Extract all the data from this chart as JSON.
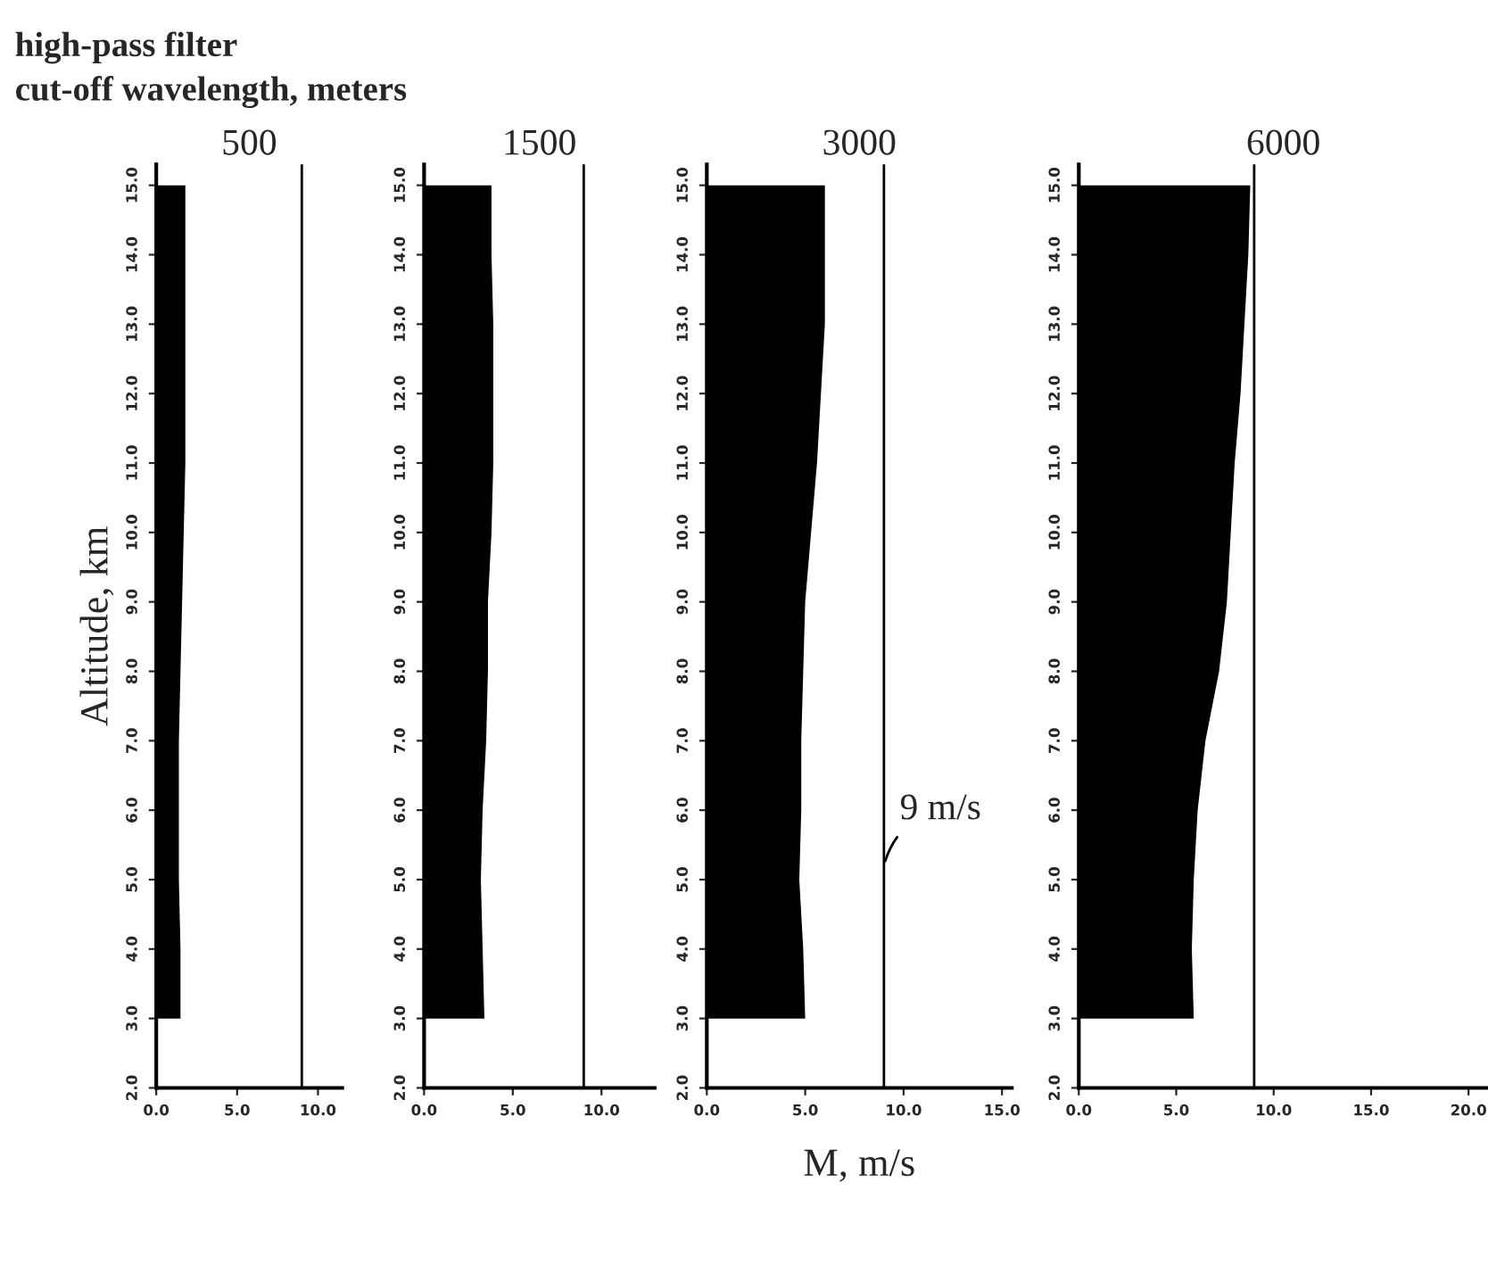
{
  "chart_data": [
    {
      "type": "area",
      "orientation": "horizontal",
      "title": "500",
      "ylabel": "Altitude, km",
      "annotations": [
        "high-pass filter",
        "cut-off wavelength, meters"
      ],
      "x": [
        3,
        4,
        5,
        6,
        7,
        8,
        9,
        10,
        11,
        12,
        13,
        14,
        15
      ],
      "series": [
        {
          "color": "#000000",
          "values": [
            1.5,
            1.5,
            1.4,
            1.4,
            1.4,
            1.5,
            1.6,
            1.7,
            1.8,
            1.8,
            1.8,
            1.8,
            1.8
          ]
        }
      ],
      "xlim": [
        0,
        11.5
      ],
      "xticks": [
        {
          "value": 0,
          "label": "0.0"
        },
        {
          "value": 5,
          "label": "5.0"
        },
        {
          "value": 10,
          "label": "10.0"
        }
      ],
      "ylim": [
        2,
        15.3
      ],
      "yticks": [
        {
          "value": 2,
          "label": "2.0"
        },
        {
          "value": 3,
          "label": "3.0"
        },
        {
          "value": 4,
          "label": "4.0"
        },
        {
          "value": 5,
          "label": "5.0"
        },
        {
          "value": 6,
          "label": "6.0"
        },
        {
          "value": 7,
          "label": "7.0"
        },
        {
          "value": 8,
          "label": "8.0"
        },
        {
          "value": 9,
          "label": "9.0"
        },
        {
          "value": 10,
          "label": "10.0"
        },
        {
          "value": 11,
          "label": "11.0"
        },
        {
          "value": 12,
          "label": "12.0"
        },
        {
          "value": 13,
          "label": "13.0"
        },
        {
          "value": 14,
          "label": "14.0"
        },
        {
          "value": 15,
          "label": "15.0"
        }
      ],
      "ref_lines": [
        {
          "axis": "x",
          "value": 9,
          "color": "#000000"
        }
      ]
    },
    {
      "type": "area",
      "orientation": "horizontal",
      "title": "1500",
      "x": [
        3,
        4,
        5,
        6,
        7,
        8,
        9,
        10,
        11,
        12,
        13,
        14,
        15
      ],
      "series": [
        {
          "color": "#000000",
          "values": [
            3.4,
            3.3,
            3.2,
            3.3,
            3.5,
            3.6,
            3.6,
            3.8,
            3.9,
            3.9,
            3.9,
            3.8,
            3.8
          ]
        }
      ],
      "xlim": [
        0,
        13
      ],
      "xticks": [
        {
          "value": 0,
          "label": "0.0"
        },
        {
          "value": 5,
          "label": "5.0"
        },
        {
          "value": 10,
          "label": "10.0"
        }
      ],
      "ylim": [
        2,
        15.3
      ],
      "yticks": [
        {
          "value": 2,
          "label": "2.0"
        },
        {
          "value": 3,
          "label": "3.0"
        },
        {
          "value": 4,
          "label": "4.0"
        },
        {
          "value": 5,
          "label": "5.0"
        },
        {
          "value": 6,
          "label": "6.0"
        },
        {
          "value": 7,
          "label": "7.0"
        },
        {
          "value": 8,
          "label": "8.0"
        },
        {
          "value": 9,
          "label": "9.0"
        },
        {
          "value": 10,
          "label": "10.0"
        },
        {
          "value": 11,
          "label": "11.0"
        },
        {
          "value": 12,
          "label": "12.0"
        },
        {
          "value": 13,
          "label": "13.0"
        },
        {
          "value": 14,
          "label": "14.0"
        },
        {
          "value": 15,
          "label": "15.0"
        }
      ],
      "ref_lines": [
        {
          "axis": "x",
          "value": 9,
          "color": "#000000"
        }
      ]
    },
    {
      "type": "area",
      "orientation": "horizontal",
      "title": "3000",
      "xlabel": "M, m/s",
      "x": [
        3,
        4,
        5,
        6,
        7,
        8,
        9,
        10,
        11,
        12,
        13,
        14,
        15
      ],
      "series": [
        {
          "color": "#000000",
          "values": [
            5.0,
            4.9,
            4.7,
            4.8,
            4.8,
            4.9,
            5.0,
            5.3,
            5.6,
            5.8,
            6.0,
            6.0,
            6.0
          ]
        }
      ],
      "xlim": [
        0,
        15.5
      ],
      "xticks": [
        {
          "value": 0,
          "label": "0.0"
        },
        {
          "value": 5,
          "label": "5.0"
        },
        {
          "value": 10,
          "label": "10.0"
        },
        {
          "value": 15,
          "label": "15.0"
        }
      ],
      "ylim": [
        2,
        15.3
      ],
      "yticks": [
        {
          "value": 2,
          "label": "2.0"
        },
        {
          "value": 3,
          "label": "3.0"
        },
        {
          "value": 4,
          "label": "4.0"
        },
        {
          "value": 5,
          "label": "5.0"
        },
        {
          "value": 6,
          "label": "6.0"
        },
        {
          "value": 7,
          "label": "7.0"
        },
        {
          "value": 8,
          "label": "8.0"
        },
        {
          "value": 9,
          "label": "9.0"
        },
        {
          "value": 10,
          "label": "10.0"
        },
        {
          "value": 11,
          "label": "11.0"
        },
        {
          "value": 12,
          "label": "12.0"
        },
        {
          "value": 13,
          "label": "13.0"
        },
        {
          "value": 14,
          "label": "14.0"
        },
        {
          "value": 15,
          "label": "15.0"
        }
      ],
      "ref_lines": [
        {
          "axis": "x",
          "value": 9,
          "label": "9 m/s",
          "color": "#000000"
        }
      ]
    },
    {
      "type": "area",
      "orientation": "horizontal",
      "title": "6000",
      "x": [
        3,
        4,
        5,
        6,
        7,
        8,
        9,
        10,
        11,
        12,
        13,
        14,
        15
      ],
      "series": [
        {
          "color": "#000000",
          "values": [
            5.9,
            5.8,
            5.9,
            6.1,
            6.5,
            7.2,
            7.6,
            7.8,
            8.0,
            8.3,
            8.5,
            8.7,
            8.8
          ]
        }
      ],
      "xlim": [
        0,
        21
      ],
      "xticks": [
        {
          "value": 0,
          "label": "0.0"
        },
        {
          "value": 5,
          "label": "5.0"
        },
        {
          "value": 10,
          "label": "10.0"
        },
        {
          "value": 15,
          "label": "15.0"
        },
        {
          "value": 20,
          "label": "20.0"
        }
      ],
      "ylim": [
        2,
        15.3
      ],
      "yticks": [
        {
          "value": 2,
          "label": "2.0"
        },
        {
          "value": 3,
          "label": "3.0"
        },
        {
          "value": 4,
          "label": "4.0"
        },
        {
          "value": 5,
          "label": "5.0"
        },
        {
          "value": 6,
          "label": "6.0"
        },
        {
          "value": 7,
          "label": "7.0"
        },
        {
          "value": 8,
          "label": "8.0"
        },
        {
          "value": 9,
          "label": "9.0"
        },
        {
          "value": 10,
          "label": "10.0"
        },
        {
          "value": 11,
          "label": "11.0"
        },
        {
          "value": 12,
          "label": "12.0"
        },
        {
          "value": 13,
          "label": "13.0"
        },
        {
          "value": 14,
          "label": "14.0"
        },
        {
          "value": 15,
          "label": "15.0"
        }
      ],
      "ref_lines": [
        {
          "axis": "x",
          "value": 9,
          "color": "#000000"
        }
      ]
    }
  ]
}
